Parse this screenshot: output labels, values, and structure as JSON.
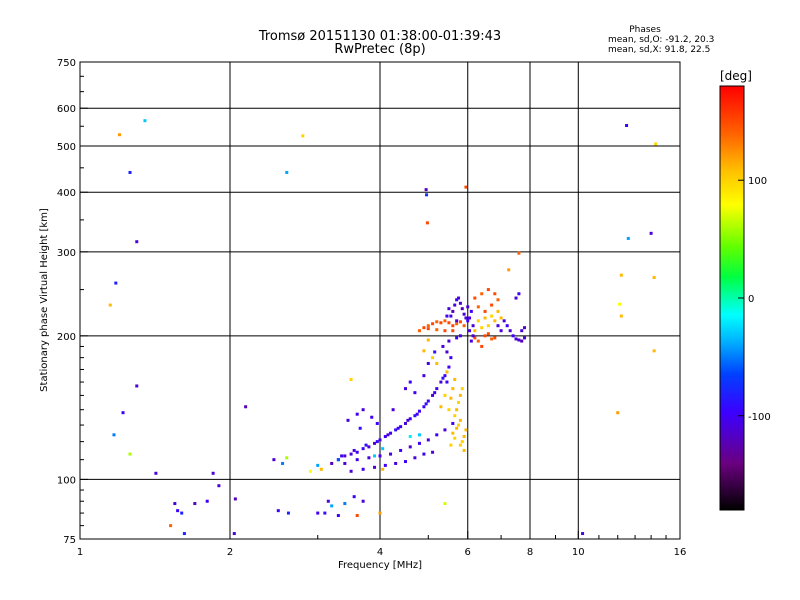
{
  "chart_data": {
    "type": "scatter",
    "title": "Tromsø 20151130 01:38:00-01:39:43",
    "subtitle": "RwPretec (8p)",
    "xlabel": "Frequency [MHz]",
    "ylabel": "Stationary phase Virtual Height [km]",
    "x_scale": "log",
    "y_scale": "log",
    "xlim": [
      1,
      16
    ],
    "ylim": [
      75,
      750
    ],
    "x_ticks": [
      1,
      2,
      4,
      6,
      8,
      10,
      16
    ],
    "x_tick_labels": [
      "1",
      "2",
      "4",
      "6",
      "8",
      "10",
      "16"
    ],
    "x_gridlines": [
      2,
      4,
      6,
      8,
      10
    ],
    "y_ticks": [
      75,
      100,
      200,
      300,
      400,
      500,
      600,
      750
    ],
    "y_tick_labels": [
      "75",
      "100",
      "200",
      "300",
      "400",
      "500",
      "600",
      "750"
    ],
    "y_gridlines": [
      100,
      200,
      300,
      400,
      500,
      600
    ],
    "grid": true,
    "stats": {
      "heading": "Phases",
      "line_o": "mean, sd,O: -91.2, 20.3",
      "line_x": "mean, sd,X:  91.8, 22.5"
    },
    "colorbar": {
      "label": "[deg]",
      "range": [
        -180,
        180
      ],
      "ticks": [
        -100,
        0,
        100
      ],
      "tick_labels": [
        "-100",
        "0",
        "100"
      ],
      "colormap": "rainbow"
    },
    "points": [
      [
        1.35,
        565,
        -30
      ],
      [
        1.2,
        528,
        120
      ],
      [
        1.26,
        440,
        -80
      ],
      [
        1.3,
        315,
        -110
      ],
      [
        1.18,
        258,
        -80
      ],
      [
        1.15,
        232,
        110
      ],
      [
        1.3,
        157,
        -110
      ],
      [
        1.22,
        138,
        -100
      ],
      [
        1.17,
        124,
        -50
      ],
      [
        1.26,
        113,
        60
      ],
      [
        1.42,
        103,
        -110
      ],
      [
        1.55,
        89,
        -110
      ],
      [
        1.57,
        86,
        -100
      ],
      [
        1.6,
        85,
        -80
      ],
      [
        1.52,
        80,
        140
      ],
      [
        1.62,
        77,
        -80
      ],
      [
        1.7,
        89,
        -120
      ],
      [
        1.8,
        90,
        -100
      ],
      [
        1.85,
        103,
        -110
      ],
      [
        1.9,
        97,
        -110
      ],
      [
        2.04,
        77,
        -110
      ],
      [
        2.05,
        91,
        -120
      ],
      [
        2.15,
        142,
        -120
      ],
      [
        2.45,
        110,
        -110
      ],
      [
        2.55,
        108,
        -50
      ],
      [
        2.6,
        111,
        60
      ],
      [
        2.5,
        86,
        -100
      ],
      [
        2.62,
        85,
        -80
      ],
      [
        2.6,
        440,
        -40
      ],
      [
        2.8,
        525,
        100
      ],
      [
        3.0,
        85,
        -100
      ],
      [
        3.1,
        85,
        -90
      ],
      [
        3.15,
        90,
        -110
      ],
      [
        3.2,
        88,
        -40
      ],
      [
        3.3,
        84,
        -100
      ],
      [
        3.4,
        89,
        -50
      ],
      [
        3.6,
        84,
        150
      ],
      [
        3.55,
        92,
        -100
      ],
      [
        3.7,
        90,
        -110
      ],
      [
        4.0,
        85,
        120
      ],
      [
        3.5,
        162,
        100
      ],
      [
        4.95,
        405,
        -120
      ],
      [
        4.96,
        395,
        -70
      ],
      [
        4.98,
        345,
        150
      ],
      [
        5.95,
        410,
        150
      ],
      [
        5.4,
        89,
        70
      ],
      [
        7.25,
        275,
        120
      ],
      [
        7.6,
        298,
        140
      ],
      [
        10.2,
        77,
        -110
      ],
      [
        12.5,
        552,
        -100
      ],
      [
        14.3,
        505,
        100
      ],
      [
        14.0,
        328,
        -110
      ],
      [
        12.6,
        320,
        -40
      ],
      [
        12.2,
        268,
        110
      ],
      [
        14.2,
        265,
        110
      ],
      [
        12.1,
        233,
        80
      ],
      [
        12.2,
        220,
        110
      ],
      [
        14.2,
        186,
        110
      ],
      [
        12.0,
        138,
        120
      ],
      [
        3.2,
        108,
        -120
      ],
      [
        3.3,
        110,
        -120
      ],
      [
        3.4,
        112,
        -110
      ],
      [
        3.5,
        113,
        -110
      ],
      [
        3.6,
        114,
        -100
      ],
      [
        3.7,
        116,
        -100
      ],
      [
        3.8,
        117,
        -110
      ],
      [
        3.9,
        119,
        -110
      ],
      [
        4.0,
        121,
        -100
      ],
      [
        4.1,
        123,
        -100
      ],
      [
        4.2,
        125,
        -100
      ],
      [
        4.3,
        127,
        -90
      ],
      [
        4.4,
        129,
        -100
      ],
      [
        4.5,
        131,
        -110
      ],
      [
        4.6,
        134,
        -100
      ],
      [
        4.7,
        136,
        -90
      ],
      [
        4.8,
        139,
        -100
      ],
      [
        4.9,
        142,
        -100
      ],
      [
        5.0,
        146,
        -100
      ],
      [
        5.1,
        150,
        -110
      ],
      [
        5.2,
        155,
        -100
      ],
      [
        5.3,
        160,
        -110
      ],
      [
        5.4,
        165,
        -100
      ],
      [
        5.5,
        172,
        -100
      ],
      [
        5.55,
        180,
        -100
      ],
      [
        5.45,
        185,
        -110
      ],
      [
        3.35,
        112,
        -100
      ],
      [
        3.55,
        115,
        -110
      ],
      [
        3.75,
        118,
        -90
      ],
      [
        3.95,
        120,
        -100
      ],
      [
        4.15,
        124,
        -110
      ],
      [
        4.35,
        128,
        -100
      ],
      [
        4.55,
        133,
        -110
      ],
      [
        4.75,
        137,
        -100
      ],
      [
        4.95,
        144,
        -90
      ],
      [
        5.15,
        152,
        -100
      ],
      [
        5.35,
        163,
        -90
      ],
      [
        3.4,
        108,
        -110
      ],
      [
        3.6,
        110,
        -100
      ],
      [
        3.8,
        111,
        -110
      ],
      [
        4.0,
        112,
        -100
      ],
      [
        4.2,
        113,
        -110
      ],
      [
        4.4,
        115,
        -100
      ],
      [
        4.6,
        117,
        -110
      ],
      [
        4.8,
        119,
        -100
      ],
      [
        5.0,
        121,
        -110
      ],
      [
        5.2,
        124,
        -100
      ],
      [
        5.4,
        127,
        -110
      ],
      [
        5.6,
        131,
        -100
      ],
      [
        3.5,
        104,
        -110
      ],
      [
        3.7,
        105,
        -100
      ],
      [
        3.9,
        106,
        -110
      ],
      [
        4.1,
        107,
        -100
      ],
      [
        4.3,
        108,
        -110
      ],
      [
        4.5,
        109,
        -100
      ],
      [
        4.7,
        111,
        -110
      ],
      [
        4.9,
        113,
        -100
      ],
      [
        5.1,
        114,
        -110
      ],
      [
        3.6,
        137,
        -100
      ],
      [
        3.7,
        140,
        -110
      ],
      [
        3.85,
        135,
        -100
      ],
      [
        3.45,
        133,
        -110
      ],
      [
        3.65,
        128,
        -90
      ],
      [
        3.95,
        131,
        -100
      ],
      [
        4.25,
        140,
        -110
      ],
      [
        4.5,
        155,
        -110
      ],
      [
        4.6,
        160,
        -100
      ],
      [
        4.7,
        152,
        -100
      ],
      [
        4.9,
        165,
        -110
      ],
      [
        5.0,
        175,
        -110
      ],
      [
        5.15,
        185,
        -90
      ],
      [
        5.35,
        190,
        -110
      ],
      [
        5.5,
        195,
        -110
      ],
      [
        5.45,
        160,
        -100
      ],
      [
        5.7,
        198,
        -100
      ],
      [
        5.8,
        200,
        -100
      ],
      [
        3.9,
        112,
        -30
      ],
      [
        4.05,
        116,
        -30
      ],
      [
        4.6,
        123,
        -20
      ],
      [
        4.8,
        124,
        -30
      ],
      [
        4.05,
        105,
        110
      ],
      [
        3.0,
        107,
        -40
      ],
      [
        3.05,
        105,
        110
      ],
      [
        2.9,
        104,
        80
      ],
      [
        3.3,
        110,
        -60
      ],
      [
        5.6,
        125,
        110
      ],
      [
        5.65,
        122,
        100
      ],
      [
        5.7,
        128,
        110
      ],
      [
        5.75,
        130,
        100
      ],
      [
        5.8,
        133,
        110
      ],
      [
        5.85,
        120,
        100
      ],
      [
        5.9,
        115,
        110
      ],
      [
        5.55,
        118,
        100
      ],
      [
        5.95,
        127,
        110
      ],
      [
        5.65,
        136,
        100
      ],
      [
        5.7,
        140,
        110
      ],
      [
        5.75,
        145,
        100
      ],
      [
        5.8,
        150,
        110
      ],
      [
        5.85,
        155,
        100
      ],
      [
        5.6,
        155,
        110
      ],
      [
        5.55,
        148,
        110
      ],
      [
        5.5,
        140,
        100
      ],
      [
        5.65,
        162,
        110
      ],
      [
        5.4,
        150,
        100
      ],
      [
        5.3,
        142,
        110
      ],
      [
        5.8,
        118,
        100
      ],
      [
        5.9,
        123,
        110
      ],
      [
        5.45,
        168,
        110
      ],
      [
        5.2,
        175,
        110
      ],
      [
        5.1,
        180,
        100
      ],
      [
        4.9,
        186,
        110
      ],
      [
        5.0,
        196,
        110
      ],
      [
        4.8,
        205,
        140
      ],
      [
        4.9,
        208,
        150
      ],
      [
        5.0,
        210,
        140
      ],
      [
        5.1,
        212,
        150
      ],
      [
        5.2,
        214,
        140
      ],
      [
        5.3,
        213,
        150
      ],
      [
        5.4,
        215,
        140
      ],
      [
        5.5,
        213,
        150
      ],
      [
        5.6,
        210,
        150
      ],
      [
        5.7,
        212,
        140
      ],
      [
        5.8,
        214,
        150
      ],
      [
        5.9,
        210,
        140
      ],
      [
        5.6,
        205,
        150
      ],
      [
        5.4,
        205,
        150
      ],
      [
        5.2,
        206,
        140
      ],
      [
        5.0,
        207,
        150
      ],
      [
        5.55,
        220,
        -110
      ],
      [
        5.6,
        225,
        -120
      ],
      [
        5.65,
        232,
        -110
      ],
      [
        5.7,
        238,
        -100
      ],
      [
        5.75,
        240,
        -110
      ],
      [
        5.8,
        234,
        -110
      ],
      [
        5.85,
        228,
        -120
      ],
      [
        5.9,
        222,
        -110
      ],
      [
        5.5,
        228,
        -110
      ],
      [
        5.45,
        220,
        -100
      ],
      [
        5.95,
        218,
        -110
      ],
      [
        5.7,
        215,
        -110
      ],
      [
        6.2,
        240,
        150
      ],
      [
        6.4,
        245,
        140
      ],
      [
        6.6,
        250,
        150
      ],
      [
        6.8,
        245,
        150
      ],
      [
        6.9,
        238,
        140
      ],
      [
        6.5,
        225,
        150
      ],
      [
        6.3,
        230,
        140
      ],
      [
        6.7,
        232,
        150
      ],
      [
        6.3,
        215,
        100
      ],
      [
        6.5,
        218,
        110
      ],
      [
        6.7,
        220,
        100
      ],
      [
        6.9,
        225,
        110
      ],
      [
        7.0,
        218,
        110
      ],
      [
        6.6,
        210,
        100
      ],
      [
        6.8,
        215,
        110
      ],
      [
        6.4,
        208,
        100
      ],
      [
        6.2,
        205,
        110
      ],
      [
        6.5,
        200,
        150
      ],
      [
        6.7,
        197,
        140
      ],
      [
        6.6,
        202,
        150
      ],
      [
        6.8,
        198,
        150
      ],
      [
        6.3,
        195,
        140
      ],
      [
        6.4,
        190,
        150
      ],
      [
        6.2,
        198,
        150
      ],
      [
        6.0,
        230,
        -110
      ],
      [
        6.1,
        225,
        -100
      ],
      [
        6.05,
        218,
        -110
      ],
      [
        6.15,
        210,
        -110
      ],
      [
        7.1,
        215,
        -110
      ],
      [
        7.2,
        210,
        -100
      ],
      [
        7.3,
        205,
        -110
      ],
      [
        7.0,
        205,
        -110
      ],
      [
        6.9,
        210,
        -110
      ],
      [
        7.4,
        200,
        -100
      ],
      [
        7.5,
        197,
        -110
      ],
      [
        7.6,
        196,
        -110
      ],
      [
        7.7,
        195,
        -120
      ],
      [
        7.8,
        198,
        -110
      ],
      [
        7.7,
        205,
        -110
      ],
      [
        7.8,
        208,
        -120
      ],
      [
        7.5,
        240,
        -110
      ],
      [
        7.6,
        245,
        -100
      ],
      [
        6.0,
        215,
        -100
      ],
      [
        6.05,
        205,
        -110
      ],
      [
        6.1,
        195,
        -110
      ],
      [
        6.15,
        200,
        -110
      ]
    ]
  }
}
